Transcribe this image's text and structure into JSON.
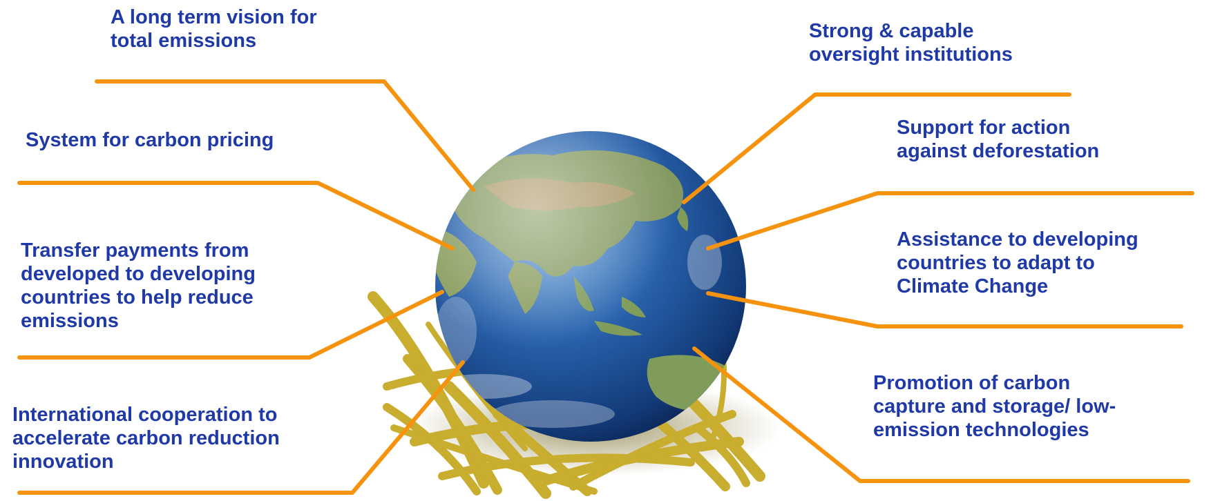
{
  "colors": {
    "label_text": "#1f3aa6",
    "connector_line": "#f5930f",
    "ocean": "#1e5aa5",
    "land": "#7a9a5c",
    "grass": "#c9ad2f"
  },
  "left_labels": [
    {
      "lines": [
        "A long term vision for",
        "total emissions"
      ]
    },
    {
      "lines": [
        "System for carbon pricing"
      ]
    },
    {
      "lines": [
        "Transfer payments from",
        "developed to developing",
        "countries to help reduce",
        "emissions"
      ]
    },
    {
      "lines": [
        "International cooperation to",
        "accelerate carbon reduction",
        "innovation"
      ]
    }
  ],
  "right_labels": [
    {
      "lines": [
        "Strong & capable",
        "oversight institutions"
      ]
    },
    {
      "lines": [
        "Support for action",
        "against deforestation"
      ]
    },
    {
      "lines": [
        "Assistance to developing",
        "countries to adapt to",
        "Climate Change"
      ]
    },
    {
      "lines": [
        "Promotion of carbon",
        "capture and storage/ low-",
        "emission technologies"
      ]
    }
  ],
  "center_image": {
    "icon": "globe-on-grass-icon"
  }
}
